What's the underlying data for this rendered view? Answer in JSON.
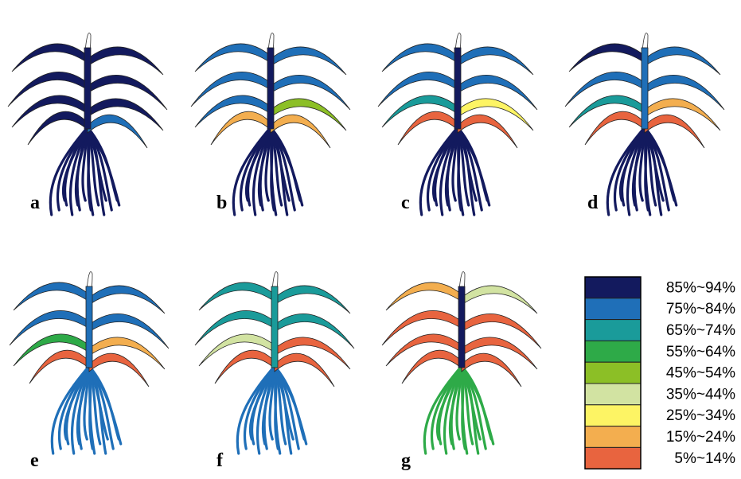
{
  "panels": [
    {
      "label": "a"
    },
    {
      "label": "b"
    },
    {
      "label": "c"
    },
    {
      "label": "d"
    },
    {
      "label": "e"
    },
    {
      "label": "f"
    },
    {
      "label": "g"
    }
  ],
  "legend": [
    {
      "label": "85%~94%",
      "color": "#131a5e"
    },
    {
      "label": "75%~84%",
      "color": "#1f6fb8"
    },
    {
      "label": "65%~74%",
      "color": "#1a9b9a"
    },
    {
      "label": "55%~64%",
      "color": "#2eaa48"
    },
    {
      "label": "45%~54%",
      "color": "#8cbf26"
    },
    {
      "label": "35%~44%",
      "color": "#d2e3a2"
    },
    {
      "label": "25%~34%",
      "color": "#fdf464"
    },
    {
      "label": "15%~24%",
      "color": "#f3ae4f"
    },
    {
      "label": "5%~14%",
      "color": "#e8643f"
    }
  ]
}
